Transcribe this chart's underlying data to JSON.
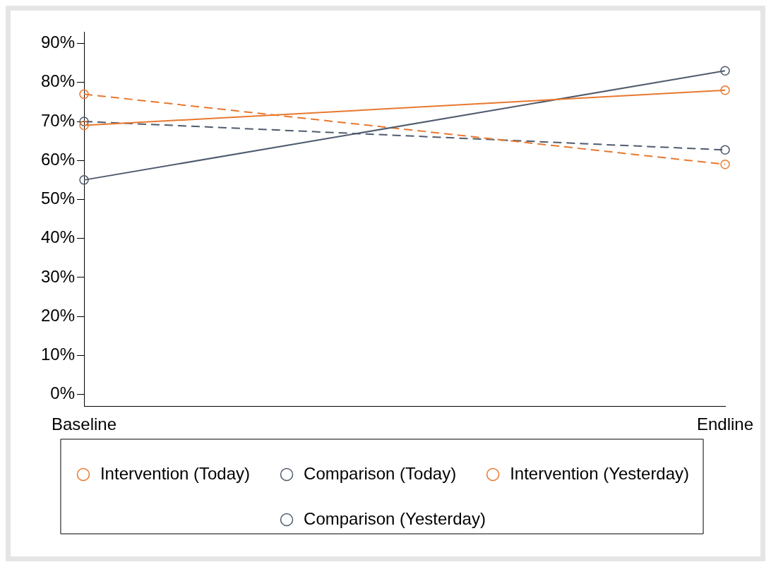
{
  "chart_data": {
    "type": "line",
    "categories": [
      "Baseline",
      "Endline"
    ],
    "series": [
      {
        "name": "Intervention (Today)",
        "color": "#e8782f",
        "values": [
          69,
          78
        ],
        "line_style": "solid"
      },
      {
        "name": "Comparison (Today)",
        "color": "#4f5b6e",
        "values": [
          55,
          83
        ],
        "line_style": "solid"
      },
      {
        "name": "Intervention (Yesterday)",
        "color": "#e8782f",
        "values": [
          77,
          59
        ],
        "line_style": "dashed"
      },
      {
        "name": "Comparison (Yesterday)",
        "color": "#4f5b6e",
        "values": [
          70,
          62.7
        ],
        "line_style": "dashed"
      }
    ],
    "ylim": [
      -3,
      93
    ],
    "yticks": [
      {
        "value": 0,
        "label": "0%"
      },
      {
        "value": 10,
        "label": "10%"
      },
      {
        "value": 20,
        "label": "20%"
      },
      {
        "value": 30,
        "label": "30%"
      },
      {
        "value": 40,
        "label": "40%"
      },
      {
        "value": 50,
        "label": "50%"
      },
      {
        "value": 60,
        "label": "60%"
      },
      {
        "value": 70,
        "label": "70%"
      },
      {
        "value": 80,
        "label": "80%"
      },
      {
        "value": 90,
        "label": "90%"
      }
    ],
    "grid": false,
    "legend": "bottom",
    "marker": "circle"
  }
}
